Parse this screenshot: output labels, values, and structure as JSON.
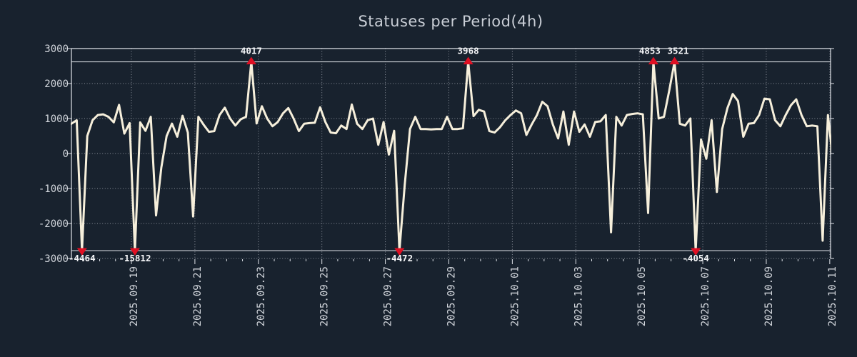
{
  "title": "Statuses per Period(4h)",
  "colors": {
    "background": "#18222e",
    "line": "#f6efdb",
    "marker": "#e01023",
    "grid": "#8b919b",
    "frame": "#dfe3e8",
    "clip_line": "#dfe3e8",
    "text": "#d2d6dc",
    "title_text": "#c9ced6",
    "marker_label_text": "#f5f6f8"
  },
  "chart_data": {
    "type": "line",
    "title": "Statuses per Period(4h)",
    "xlabel": "",
    "ylabel": "",
    "ylim": [
      -3000,
      3000
    ],
    "y_ticks": [
      -3000,
      -2000,
      -1000,
      0,
      1000,
      2000,
      3000
    ],
    "y_tick_labels": [
      "-3000",
      "-2000",
      "-1000",
      "0",
      "1000",
      "2000",
      "3000"
    ],
    "x_tick_labels": [
      "2025.09.19",
      "2025.09.21",
      "2025.09.23",
      "2025.09.25",
      "2025.09.27",
      "2025.09.29",
      "2025.10.01",
      "2025.10.03",
      "2025.10.05",
      "2025.10.07",
      "2025.10.09",
      "2025.10.11"
    ],
    "x_tick_first_index": 11.339,
    "x_tick_index_step": 12,
    "minor_tick_index_step": 3,
    "period_hours": 4,
    "samples_per_day": 6,
    "clip_top": 2620,
    "clip_bottom": -2775,
    "grid": true,
    "legend": false,
    "values": [
      850,
      950,
      -4464,
      500,
      950,
      1100,
      1120,
      1050,
      890,
      1390,
      570,
      870,
      -15812,
      890,
      650,
      1050,
      -1770,
      -400,
      500,
      855,
      480,
      1080,
      600,
      -1800,
      1050,
      820,
      620,
      640,
      1100,
      1310,
      1000,
      800,
      980,
      1050,
      4017,
      860,
      1350,
      1000,
      780,
      900,
      1150,
      1300,
      1000,
      640,
      850,
      870,
      880,
      1320,
      900,
      600,
      580,
      800,
      700,
      1400,
      850,
      700,
      950,
      1000,
      250,
      900,
      -30,
      650,
      -4472,
      -900,
      700,
      1050,
      700,
      700,
      690,
      700,
      700,
      1050,
      700,
      700,
      720,
      3968,
      1070,
      1250,
      1200,
      640,
      600,
      750,
      950,
      1100,
      1230,
      1150,
      530,
      830,
      1100,
      1480,
      1350,
      830,
      430,
      1200,
      250,
      1200,
      620,
      830,
      480,
      900,
      920,
      1100,
      -2250,
      1050,
      800,
      1100,
      1130,
      1150,
      1120,
      -1700,
      4853,
      1000,
      1050,
      1800,
      3521,
      850,
      800,
      1000,
      -4054,
      400,
      -150,
      950,
      -1100,
      700,
      1300,
      1700,
      1500,
      480,
      850,
      870,
      1100,
      1570,
      1550,
      950,
      780,
      1100,
      1380,
      1550,
      1100,
      780,
      800,
      780,
      -2490,
      1100,
      -300
    ],
    "markers": [
      {
        "index": 2,
        "value": -4464,
        "label": "-4464",
        "dir": "down"
      },
      {
        "index": 12,
        "value": -15812,
        "label": "-15812",
        "dir": "down"
      },
      {
        "index": 34,
        "value": 4017,
        "label": "4017",
        "dir": "up"
      },
      {
        "index": 62,
        "value": -4472,
        "label": "-4472",
        "dir": "down"
      },
      {
        "index": 75,
        "value": 3968,
        "label": "3968",
        "dir": "up"
      },
      {
        "index": 110,
        "value": 4853,
        "label": "4853",
        "dir": "up"
      },
      {
        "index": 114,
        "value": 3521,
        "label": "3521",
        "dir": "up"
      },
      {
        "index": 118,
        "value": -4054,
        "label": "-4054",
        "dir": "down"
      }
    ]
  }
}
